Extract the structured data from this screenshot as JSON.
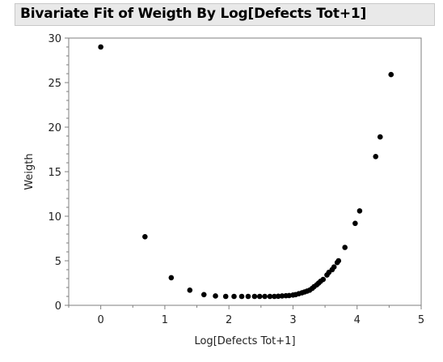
{
  "header": {
    "title": "Bivariate Fit of Weigth By Log[Defects Tot+1]"
  },
  "colors": {
    "point": "#000000",
    "frame": "#7f7f7f",
    "header_bg": "#e9e9e9"
  },
  "chart_data": {
    "type": "scatter",
    "title": "Bivariate Fit of Weigth By Log[Defects Tot+1]",
    "xlabel": "Log[Defects Tot+1]",
    "ylabel": "Weigth",
    "xlim": [
      -0.5,
      5
    ],
    "ylim": [
      0,
      30
    ],
    "xticks": [
      0,
      1,
      2,
      3,
      4,
      5
    ],
    "yticks": [
      0,
      5,
      10,
      15,
      20,
      25,
      30
    ],
    "grid": false,
    "x": [
      0,
      0.69,
      1.1,
      1.39,
      1.61,
      1.79,
      1.95,
      2.08,
      2.2,
      2.3,
      2.4,
      2.48,
      2.56,
      2.64,
      2.71,
      2.77,
      2.83,
      2.89,
      2.94,
      3.0,
      3.04,
      3.09,
      3.14,
      3.18,
      3.22,
      3.26,
      3.3,
      3.33,
      3.37,
      3.4,
      3.43,
      3.47,
      3.53,
      3.56,
      3.61,
      3.64,
      3.69,
      3.71,
      3.81,
      3.97,
      4.04,
      4.29,
      4.36,
      4.53
    ],
    "y": [
      29.0,
      7.7,
      3.1,
      1.7,
      1.2,
      1.05,
      1.0,
      1.0,
      1.0,
      1.0,
      1.0,
      1.0,
      1.0,
      1.0,
      1.0,
      1.02,
      1.05,
      1.08,
      1.1,
      1.15,
      1.2,
      1.3,
      1.4,
      1.5,
      1.6,
      1.7,
      1.9,
      2.1,
      2.3,
      2.5,
      2.7,
      2.9,
      3.4,
      3.7,
      4.0,
      4.3,
      4.8,
      5.0,
      6.5,
      9.2,
      10.6,
      16.7,
      18.9,
      25.9
    ]
  }
}
